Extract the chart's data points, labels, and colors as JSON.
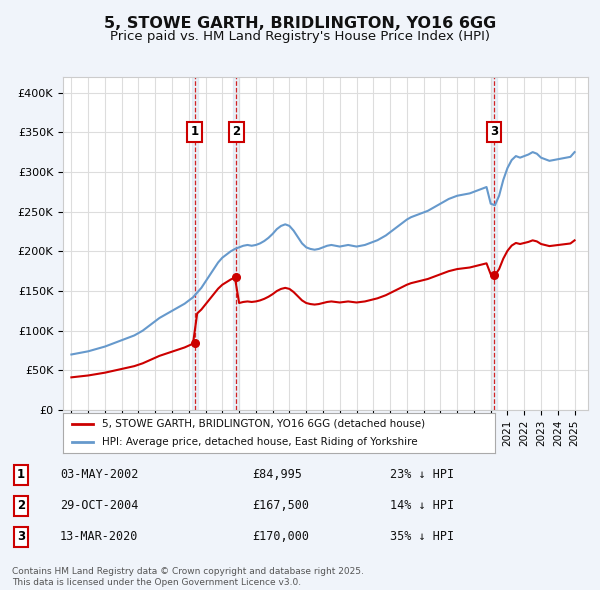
{
  "title": "5, STOWE GARTH, BRIDLINGTON, YO16 6GG",
  "subtitle": "Price paid vs. HM Land Registry's House Price Index (HPI)",
  "background_color": "#f0f4fa",
  "plot_background": "#ffffff",
  "legend_label_red": "5, STOWE GARTH, BRIDLINGTON, YO16 6GG (detached house)",
  "legend_label_blue": "HPI: Average price, detached house, East Riding of Yorkshire",
  "transactions": [
    {
      "num": 1,
      "date": "03-MAY-2002",
      "price": "£84,995",
      "hpi": "23% ↓ HPI",
      "x": 2002.35
    },
    {
      "num": 2,
      "date": "29-OCT-2004",
      "price": "£167,500",
      "hpi": "14% ↓ HPI",
      "x": 2004.83
    },
    {
      "num": 3,
      "date": "13-MAR-2020",
      "price": "£170,000",
      "hpi": "35% ↓ HPI",
      "x": 2020.2
    }
  ],
  "transaction_prices": [
    84995,
    167500,
    170000
  ],
  "footnote": "Contains HM Land Registry data © Crown copyright and database right 2025.\nThis data is licensed under the Open Government Licence v3.0.",
  "ylim": [
    0,
    420000
  ],
  "yticks": [
    0,
    50000,
    100000,
    150000,
    200000,
    250000,
    300000,
    350000,
    400000
  ],
  "hpi_color": "#6699cc",
  "price_color": "#cc0000",
  "vline_color": "#cc0000",
  "grid_color": "#dddddd",
  "years_hpi": [
    1995.0,
    1995.25,
    1995.5,
    1995.75,
    1996.0,
    1996.25,
    1996.5,
    1996.75,
    1997.0,
    1997.25,
    1997.5,
    1997.75,
    1998.0,
    1998.25,
    1998.5,
    1998.75,
    1999.0,
    1999.25,
    1999.5,
    1999.75,
    2000.0,
    2000.25,
    2000.5,
    2000.75,
    2001.0,
    2001.25,
    2001.5,
    2001.75,
    2002.0,
    2002.25,
    2002.5,
    2002.75,
    2003.0,
    2003.25,
    2003.5,
    2003.75,
    2004.0,
    2004.25,
    2004.5,
    2004.75,
    2005.0,
    2005.25,
    2005.5,
    2005.75,
    2006.0,
    2006.25,
    2006.5,
    2006.75,
    2007.0,
    2007.25,
    2007.5,
    2007.75,
    2008.0,
    2008.25,
    2008.5,
    2008.75,
    2009.0,
    2009.25,
    2009.5,
    2009.75,
    2010.0,
    2010.25,
    2010.5,
    2010.75,
    2011.0,
    2011.25,
    2011.5,
    2011.75,
    2012.0,
    2012.25,
    2012.5,
    2012.75,
    2013.0,
    2013.25,
    2013.5,
    2013.75,
    2014.0,
    2014.25,
    2014.5,
    2014.75,
    2015.0,
    2015.25,
    2015.5,
    2015.75,
    2016.0,
    2016.25,
    2016.5,
    2016.75,
    2017.0,
    2017.25,
    2017.5,
    2017.75,
    2018.0,
    2018.25,
    2018.5,
    2018.75,
    2019.0,
    2019.25,
    2019.5,
    2019.75,
    2020.0,
    2020.25,
    2020.5,
    2020.75,
    2021.0,
    2021.25,
    2021.5,
    2021.75,
    2022.0,
    2022.25,
    2022.5,
    2022.75,
    2023.0,
    2023.25,
    2023.5,
    2023.75,
    2024.0,
    2024.25,
    2024.5,
    2024.75,
    2025.0
  ],
  "hpi_values": [
    70000,
    71000,
    72000,
    73000,
    74000,
    75500,
    77000,
    78500,
    80000,
    82000,
    84000,
    86000,
    88000,
    90000,
    92000,
    94000,
    97000,
    100000,
    104000,
    108000,
    112000,
    116000,
    119000,
    122000,
    125000,
    128000,
    131000,
    134000,
    138000,
    142000,
    148000,
    154000,
    162000,
    170000,
    178000,
    186000,
    192000,
    196000,
    200000,
    203000,
    205000,
    207000,
    208000,
    207000,
    208000,
    210000,
    213000,
    217000,
    222000,
    228000,
    232000,
    234000,
    232000,
    226000,
    218000,
    210000,
    205000,
    203000,
    202000,
    203000,
    205000,
    207000,
    208000,
    207000,
    206000,
    207000,
    208000,
    207000,
    206000,
    207000,
    208000,
    210000,
    212000,
    214000,
    217000,
    220000,
    224000,
    228000,
    232000,
    236000,
    240000,
    243000,
    245000,
    247000,
    249000,
    251000,
    254000,
    257000,
    260000,
    263000,
    266000,
    268000,
    270000,
    271000,
    272000,
    273000,
    275000,
    277000,
    279000,
    281000,
    260000,
    258000,
    270000,
    290000,
    305000,
    315000,
    320000,
    318000,
    320000,
    322000,
    325000,
    323000,
    318000,
    316000,
    314000,
    315000,
    316000,
    317000,
    318000,
    319000,
    325000
  ]
}
